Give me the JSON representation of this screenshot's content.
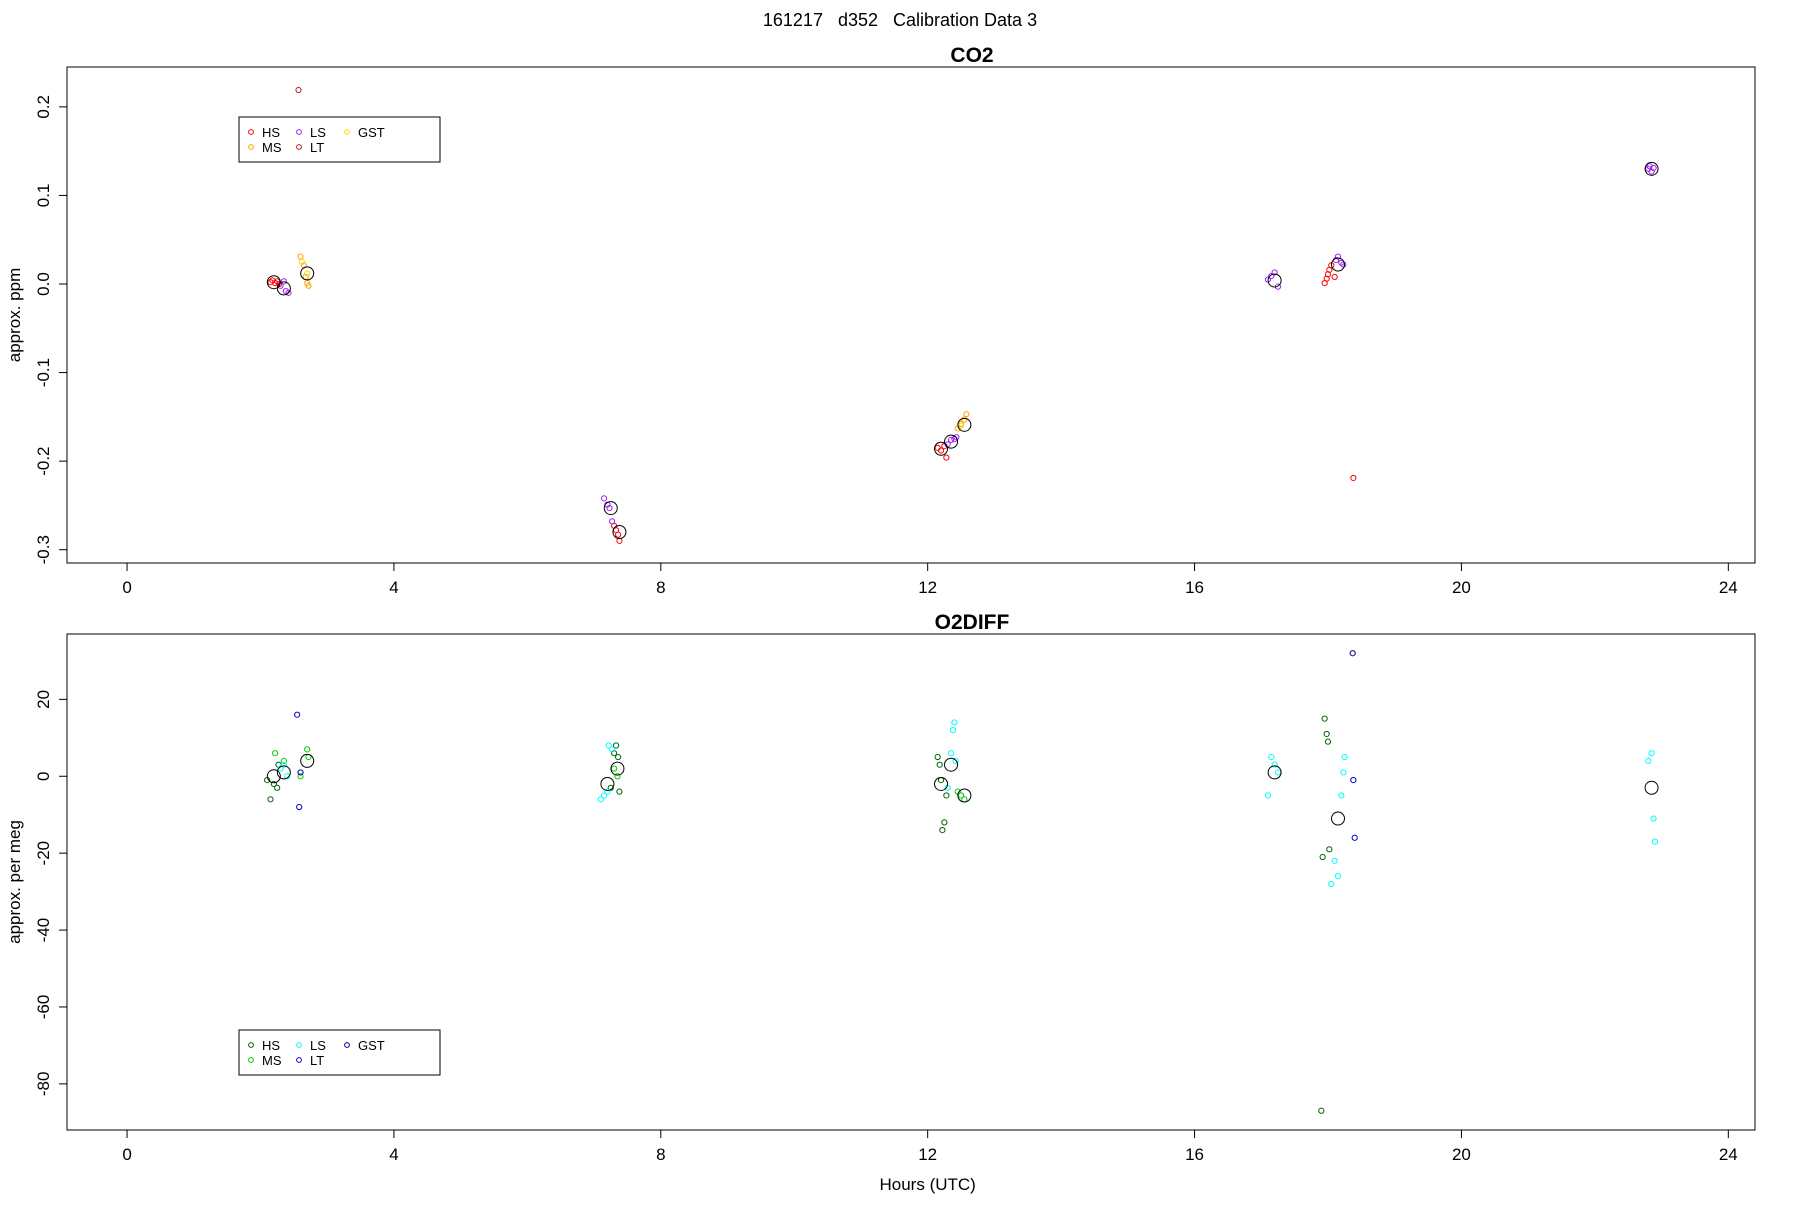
{
  "main_title": "161217   d352   Calibration Data 3",
  "chart_data": [
    {
      "type": "scatter",
      "title": "CO2",
      "ylabel": "approx. ppm",
      "xlabel": "",
      "xlim": [
        -0.9,
        24.4
      ],
      "ylim": [
        -0.315,
        0.245
      ],
      "x_ticks": [
        0,
        4,
        8,
        12,
        16,
        20,
        24
      ],
      "y_ticks": [
        -0.3,
        -0.2,
        -0.1,
        0.0,
        0.1,
        0.2
      ],
      "y_tick_labels": [
        "-0.3",
        "-0.2",
        "-0.1",
        "0.0",
        "0.1",
        "0.2"
      ],
      "grid": false,
      "legend_position": "top-left",
      "legend": [
        {
          "name": "HS",
          "color": "#ff0000"
        },
        {
          "name": "MS",
          "color": "#ffa500"
        },
        {
          "name": "LS",
          "color": "#a020f0"
        },
        {
          "name": "LT",
          "color": "#b22222"
        },
        {
          "name": "GST",
          "color": "#ffd700"
        }
      ],
      "series": [
        {
          "name": "HS",
          "color": "#ff0000",
          "x": [
            2.15,
            2.18,
            2.22,
            2.25,
            2.28,
            7.3,
            7.33,
            7.36,
            7.38,
            12.15,
            12.2,
            12.25,
            12.28,
            17.95,
            17.98,
            18.0,
            18.02,
            18.05,
            18.1,
            18.38
          ],
          "y": [
            0.002,
            0.004,
            0.001,
            0.003,
            0.0,
            -0.273,
            -0.278,
            -0.283,
            -0.29,
            -0.185,
            -0.188,
            -0.183,
            -0.196,
            0.001,
            0.006,
            0.011,
            0.016,
            0.021,
            0.008,
            -0.219
          ]
        },
        {
          "name": "MS",
          "color": "#ffa500",
          "x": [
            2.6,
            2.65,
            2.68,
            2.7,
            2.72,
            12.45,
            12.5,
            12.55,
            12.58
          ],
          "y": [
            0.031,
            0.021,
            0.008,
            0.001,
            -0.002,
            -0.163,
            -0.158,
            -0.153,
            -0.147
          ]
        },
        {
          "name": "LS",
          "color": "#a020f0",
          "x": [
            2.3,
            2.35,
            2.38,
            2.42,
            7.15,
            7.2,
            7.23,
            7.27,
            12.3,
            12.35,
            12.4,
            12.43,
            17.1,
            17.15,
            17.2,
            17.25,
            18.12,
            18.15,
            18.2,
            18.23,
            22.8,
            22.82,
            22.85,
            22.88
          ],
          "y": [
            -0.002,
            0.003,
            -0.008,
            -0.01,
            -0.242,
            -0.249,
            -0.253,
            -0.268,
            -0.181,
            -0.176,
            -0.175,
            -0.173,
            0.005,
            0.009,
            0.013,
            -0.003,
            0.027,
            0.031,
            0.024,
            0.022,
            0.13,
            0.133,
            0.127,
            0.131
          ]
        },
        {
          "name": "LT",
          "color": "#b22222",
          "x": [
            2.57
          ],
          "y": [
            0.219
          ]
        },
        {
          "name": "GST",
          "color": "#ffd700",
          "x": [
            2.62,
            2.7,
            12.5
          ],
          "y": [
            0.025,
            0.012,
            -0.16
          ]
        }
      ],
      "means": {
        "color": "#000000",
        "x": [
          2.2,
          2.35,
          2.7,
          7.25,
          7.38,
          12.2,
          12.35,
          12.55,
          17.2,
          18.15,
          22.85
        ],
        "y": [
          0.002,
          -0.005,
          0.012,
          -0.253,
          -0.28,
          -0.186,
          -0.178,
          -0.159,
          0.004,
          0.022,
          0.13
        ]
      }
    },
    {
      "type": "scatter",
      "title": "O2DIFF",
      "ylabel": "approx. per meg",
      "xlabel": "Hours (UTC)",
      "xlim": [
        -0.9,
        24.4
      ],
      "ylim": [
        -92,
        37
      ],
      "x_ticks": [
        0,
        4,
        8,
        12,
        16,
        20,
        24
      ],
      "y_ticks": [
        -80,
        -60,
        -40,
        -20,
        0,
        20
      ],
      "y_tick_labels": [
        "-80",
        "-60",
        "-40",
        "-20",
        "0",
        "20"
      ],
      "grid": false,
      "legend_position": "bottom-left",
      "legend": [
        {
          "name": "HS",
          "color": "#006400"
        },
        {
          "name": "MS",
          "color": "#00cd00"
        },
        {
          "name": "LS",
          "color": "#00ffff"
        },
        {
          "name": "LT",
          "color": "#0000cd"
        },
        {
          "name": "GST",
          "color": "#00008b"
        }
      ],
      "series": [
        {
          "name": "HS",
          "color": "#006400",
          "x": [
            2.1,
            2.15,
            2.2,
            2.25,
            2.27,
            7.25,
            7.3,
            7.33,
            7.36,
            7.38,
            12.15,
            12.18,
            12.2,
            12.22,
            12.25,
            12.28,
            17.9,
            17.92,
            17.95,
            17.98,
            18.0,
            18.02
          ],
          "y": [
            -1,
            -6,
            -2,
            -3,
            3,
            -3,
            6,
            8,
            5,
            -4,
            5,
            3,
            -1,
            -14,
            -12,
            -5,
            -87,
            -21,
            15,
            11,
            9,
            -19
          ],
          "mark_color": "#006400"
        },
        {
          "name": "MS",
          "color": "#00cd00",
          "x": [
            2.22,
            2.35,
            2.6,
            2.7,
            2.72,
            7.3,
            7.35,
            12.45,
            12.5,
            12.55
          ],
          "y": [
            6,
            4,
            0,
            7,
            5,
            2,
            0,
            -4,
            -5,
            -6
          ]
        },
        {
          "name": "LS",
          "color": "#00ffff",
          "x": [
            2.3,
            2.35,
            2.4,
            7.1,
            7.15,
            7.2,
            7.22,
            7.27,
            12.3,
            12.35,
            12.38,
            12.4,
            12.42,
            17.1,
            17.15,
            17.2,
            17.25,
            18.05,
            18.1,
            18.15,
            18.2,
            18.23,
            18.25,
            22.8,
            22.85,
            22.88,
            22.9
          ],
          "y": [
            2,
            3,
            0,
            -6,
            -5,
            -4,
            8,
            7,
            -3,
            6,
            12,
            14,
            4,
            -5,
            5,
            3,
            1,
            -28,
            -22,
            -26,
            -5,
            1,
            5,
            4,
            6,
            -11,
            -17
          ]
        },
        {
          "name": "LT",
          "color": "#0000cd",
          "x": [
            2.55,
            2.58,
            18.38,
            18.4
          ],
          "y": [
            16,
            -8,
            -1,
            -16
          ]
        },
        {
          "name": "GST",
          "color": "#00008b",
          "x": [
            18.37,
            2.6
          ],
          "y": [
            32,
            1
          ]
        }
      ],
      "means": {
        "color": "#000000",
        "x": [
          2.2,
          2.35,
          2.7,
          7.2,
          7.35,
          12.2,
          12.35,
          12.55,
          17.2,
          18.15,
          22.85
        ],
        "y": [
          0,
          1,
          4,
          -2,
          2,
          -2,
          3,
          -5,
          1,
          -11,
          -3
        ]
      }
    }
  ]
}
